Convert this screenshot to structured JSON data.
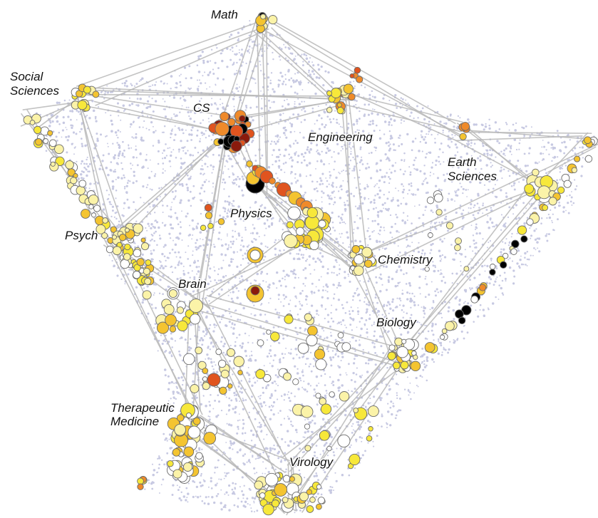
{
  "map": {
    "regions": [
      {
        "id": "math",
        "lines": [
          "Math"
        ]
      },
      {
        "id": "social-sciences",
        "lines": [
          "Social",
          "Sciences"
        ]
      },
      {
        "id": "cs",
        "lines": [
          "CS"
        ]
      },
      {
        "id": "engineering",
        "lines": [
          "Engineering"
        ]
      },
      {
        "id": "earth-sciences",
        "lines": [
          "Earth",
          "Sciences"
        ]
      },
      {
        "id": "physics",
        "lines": [
          "Physics"
        ]
      },
      {
        "id": "psych",
        "lines": [
          "Psych"
        ]
      },
      {
        "id": "chemistry",
        "lines": [
          "Chemistry"
        ]
      },
      {
        "id": "brain",
        "lines": [
          "Brain"
        ]
      },
      {
        "id": "biology",
        "lines": [
          "Biology"
        ]
      },
      {
        "id": "therapeutic-medicine",
        "lines": [
          "Therapeutic",
          "Medicine"
        ]
      },
      {
        "id": "virology",
        "lines": [
          "Virology"
        ]
      }
    ],
    "colors": {
      "background_points": "#c7c9e2",
      "edges": "#b9b9b9",
      "node_white": "#ffffff",
      "node_pale_yellow": "#fbf3a8",
      "node_yellow": "#f7e83a",
      "node_gold": "#f4c430",
      "node_orange": "#ef8a2a",
      "node_red_orange": "#e0541f",
      "node_dark_red": "#8a1a0c",
      "node_black": "#000000"
    }
  }
}
